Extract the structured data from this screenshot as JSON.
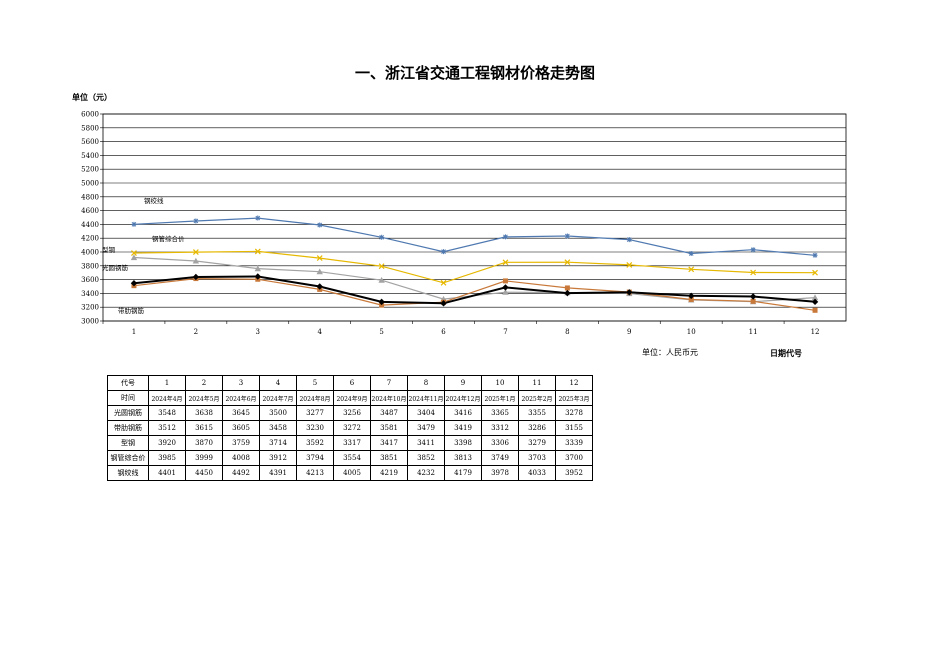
{
  "title": "一、浙江省交通工程钢材价格走势图",
  "unit_top": "单位（元）",
  "unit_bottom": "单位：人民币元",
  "date_code_label": "日期代号",
  "chart_data": {
    "type": "line",
    "x": [
      1,
      2,
      3,
      4,
      5,
      6,
      7,
      8,
      9,
      10,
      11,
      12
    ],
    "ylim": [
      3000,
      6000
    ],
    "ystep": 200,
    "grid": true,
    "series": [
      {
        "name": "光圆钢筋",
        "label": "光圆钢筋",
        "color": "#000000",
        "marker": "diamond",
        "values": [
          3548,
          3638,
          3645,
          3500,
          3277,
          3256,
          3487,
          3404,
          3416,
          3365,
          3355,
          3278
        ]
      },
      {
        "name": "带肋钢筋",
        "label": "带肋钢筋",
        "color": "#c8793a",
        "marker": "square",
        "values": [
          3512,
          3615,
          3605,
          3458,
          3230,
          3272,
          3581,
          3479,
          3419,
          3312,
          3286,
          3155
        ]
      },
      {
        "name": "型钢",
        "label": "型钢",
        "color": "#a3a3a3",
        "marker": "triangle",
        "values": [
          3920,
          3870,
          3759,
          3714,
          3592,
          3317,
          3417,
          3411,
          3398,
          3306,
          3279,
          3339
        ]
      },
      {
        "name": "钢管综合价",
        "label": "钢管综合价",
        "color": "#e6b800",
        "marker": "x",
        "values": [
          3985,
          3999,
          4008,
          3912,
          3794,
          3554,
          3851,
          3852,
          3813,
          3749,
          3703,
          3700
        ]
      },
      {
        "name": "钢绞线",
        "label": "钢绞线",
        "color": "#4f79b0",
        "marker": "star",
        "values": [
          4401,
          4450,
          4492,
          4391,
          4213,
          4005,
          4219,
          4232,
          4179,
          3978,
          4033,
          3952
        ]
      }
    ]
  },
  "table": {
    "code_header": "代号",
    "codes": [
      "1",
      "2",
      "3",
      "4",
      "5",
      "6",
      "7",
      "8",
      "9",
      "10",
      "11",
      "12"
    ],
    "time_header": "时间",
    "dates": [
      "2024年4月",
      "2024年5月",
      "2024年6月",
      "2024年7月",
      "2024年8月",
      "2024年9月",
      "2024年10月",
      "2024年11月",
      "2024年12月",
      "2025年1月",
      "2025年2月",
      "2025年3月"
    ],
    "rows": [
      {
        "label": "光圆钢筋",
        "values": [
          "3548",
          "3638",
          "3645",
          "3500",
          "3277",
          "3256",
          "3487",
          "3404",
          "3416",
          "3365",
          "3355",
          "3278"
        ]
      },
      {
        "label": "带肋钢筋",
        "values": [
          "3512",
          "3615",
          "3605",
          "3458",
          "3230",
          "3272",
          "3581",
          "3479",
          "3419",
          "3312",
          "3286",
          "3155"
        ]
      },
      {
        "label": "型钢",
        "values": [
          "3920",
          "3870",
          "3759",
          "3714",
          "3592",
          "3317",
          "3417",
          "3411",
          "3398",
          "3306",
          "3279",
          "3339"
        ]
      },
      {
        "label": "钢管综合价",
        "values": [
          "3985",
          "3999",
          "4008",
          "3912",
          "3794",
          "3554",
          "3851",
          "3852",
          "3813",
          "3749",
          "3703",
          "3700"
        ]
      },
      {
        "label": "钢绞线",
        "values": [
          "4401",
          "4450",
          "4492",
          "4391",
          "4213",
          "4005",
          "4219",
          "4232",
          "4179",
          "3978",
          "4033",
          "3952"
        ]
      }
    ]
  }
}
